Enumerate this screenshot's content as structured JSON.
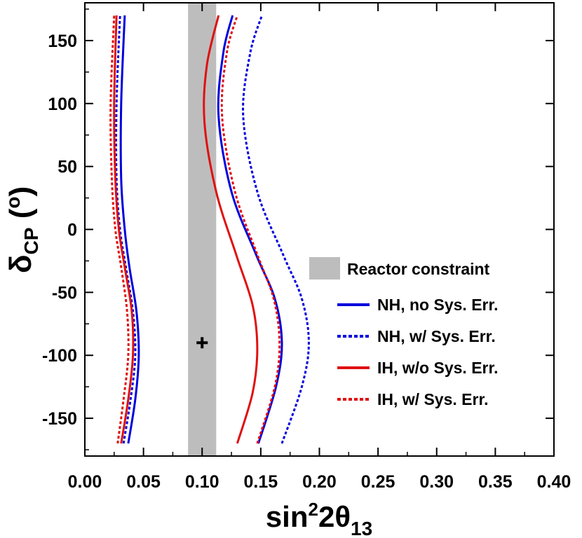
{
  "chart_data": {
    "type": "line",
    "title": "",
    "xlabel": {
      "base": "sin",
      "sup": "2",
      "rest": "2θ",
      "sub": "13"
    },
    "ylabel": {
      "base": "δ",
      "sub": "CP",
      "rest": " (",
      "sup": "o",
      "end": ")"
    },
    "xlim": [
      0.0,
      0.4
    ],
    "ylim": [
      -180,
      180
    ],
    "x_ticks": [
      0.0,
      0.05,
      0.1,
      0.15,
      0.2,
      0.25,
      0.3,
      0.35,
      0.4
    ],
    "x_tick_labels": [
      "0.00",
      "0.05",
      "0.10",
      "0.15",
      "0.20",
      "0.25",
      "0.30",
      "0.35",
      "0.40"
    ],
    "y_ticks": [
      150,
      100,
      50,
      0,
      -50,
      -100,
      -150
    ],
    "y_tick_labels": [
      "150",
      "100",
      "50",
      "0",
      "-50",
      "-100",
      "-150"
    ],
    "reactor_band": {
      "label": "Reactor constraint",
      "x_min": 0.088,
      "x_max": 0.112,
      "color": "#bdbdbd"
    },
    "best_fit_marker": {
      "x": 0.1,
      "y": -90
    },
    "legend_position": "right",
    "series": [
      {
        "name": "NH, no Sys. Err.",
        "color": "#0000dd",
        "dashed": false,
        "left": [
          [
            0.037,
            -170
          ],
          [
            0.043,
            -135
          ],
          [
            0.046,
            -100
          ],
          [
            0.044,
            -65
          ],
          [
            0.038,
            -30
          ],
          [
            0.034,
            0
          ],
          [
            0.031,
            40
          ],
          [
            0.031,
            100
          ],
          [
            0.034,
            170
          ]
        ],
        "right": [
          [
            0.148,
            -170
          ],
          [
            0.163,
            -125
          ],
          [
            0.168,
            -90
          ],
          [
            0.162,
            -55
          ],
          [
            0.146,
            -20
          ],
          [
            0.125,
            30
          ],
          [
            0.114,
            90
          ],
          [
            0.118,
            140
          ],
          [
            0.126,
            170
          ]
        ]
      },
      {
        "name": "NH, w/ Sys. Err.",
        "color": "#0000dd",
        "dashed": true,
        "left": [
          [
            0.033,
            -170
          ],
          [
            0.039,
            -135
          ],
          [
            0.043,
            -100
          ],
          [
            0.041,
            -65
          ],
          [
            0.035,
            -30
          ],
          [
            0.03,
            0
          ],
          [
            0.027,
            40
          ],
          [
            0.027,
            100
          ],
          [
            0.03,
            170
          ]
        ],
        "right": [
          [
            0.168,
            -170
          ],
          [
            0.185,
            -125
          ],
          [
            0.191,
            -90
          ],
          [
            0.185,
            -55
          ],
          [
            0.169,
            -20
          ],
          [
            0.147,
            30
          ],
          [
            0.135,
            90
          ],
          [
            0.141,
            140
          ],
          [
            0.151,
            170
          ]
        ]
      },
      {
        "name": "IH, w/o Sys. Err.",
        "color": "#e01010",
        "dashed": false,
        "left": [
          [
            0.031,
            -170
          ],
          [
            0.037,
            -135
          ],
          [
            0.041,
            -100
          ],
          [
            0.04,
            -65
          ],
          [
            0.034,
            -30
          ],
          [
            0.029,
            0
          ],
          [
            0.026,
            40
          ],
          [
            0.025,
            100
          ],
          [
            0.027,
            170
          ]
        ],
        "right": [
          [
            0.13,
            -170
          ],
          [
            0.143,
            -130
          ],
          [
            0.147,
            -95
          ],
          [
            0.143,
            -60
          ],
          [
            0.129,
            -20
          ],
          [
            0.112,
            30
          ],
          [
            0.102,
            85
          ],
          [
            0.104,
            130
          ],
          [
            0.114,
            170
          ]
        ]
      },
      {
        "name": "IH, w/ Sys. Err.",
        "color": "#e01010",
        "dashed": true,
        "left": [
          [
            0.028,
            -170
          ],
          [
            0.033,
            -135
          ],
          [
            0.037,
            -100
          ],
          [
            0.036,
            -65
          ],
          [
            0.031,
            -30
          ],
          [
            0.026,
            0
          ],
          [
            0.023,
            40
          ],
          [
            0.022,
            100
          ],
          [
            0.025,
            170
          ]
        ],
        "right": [
          [
            0.147,
            -170
          ],
          [
            0.162,
            -125
          ],
          [
            0.166,
            -90
          ],
          [
            0.161,
            -55
          ],
          [
            0.147,
            -20
          ],
          [
            0.128,
            30
          ],
          [
            0.117,
            90
          ],
          [
            0.121,
            140
          ],
          [
            0.13,
            170
          ]
        ]
      }
    ]
  }
}
